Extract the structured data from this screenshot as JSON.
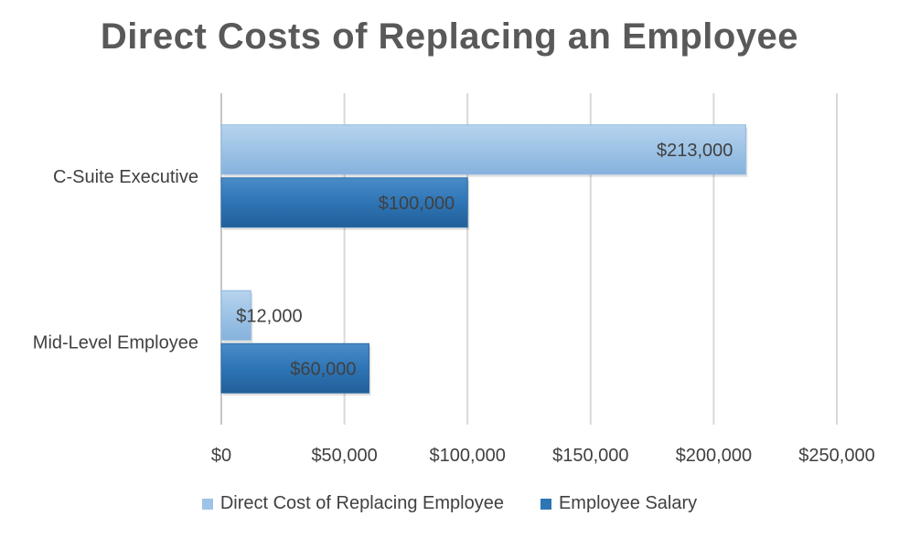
{
  "chart_data": {
    "type": "bar",
    "orientation": "horizontal",
    "title": "Direct Costs of Replacing an Employee",
    "categories": [
      "C-Suite Executive",
      "Mid-Level Employee"
    ],
    "series": [
      {
        "name": "Direct Cost of Replacing Employee",
        "values": [
          213000,
          12000
        ],
        "labels": [
          "$213,000",
          "$12,000"
        ],
        "color": "#9DC3E6"
      },
      {
        "name": "Employee Salary",
        "values": [
          100000,
          60000
        ],
        "labels": [
          "$100,000",
          "$60,000"
        ],
        "color": "#2E75B6"
      }
    ],
    "x_ticks": [
      "$0",
      "$50,000",
      "$100,000",
      "$150,000",
      "$200,000",
      "$250,000"
    ],
    "xlim": [
      0,
      250000
    ],
    "grid": true,
    "legend_position": "bottom"
  }
}
